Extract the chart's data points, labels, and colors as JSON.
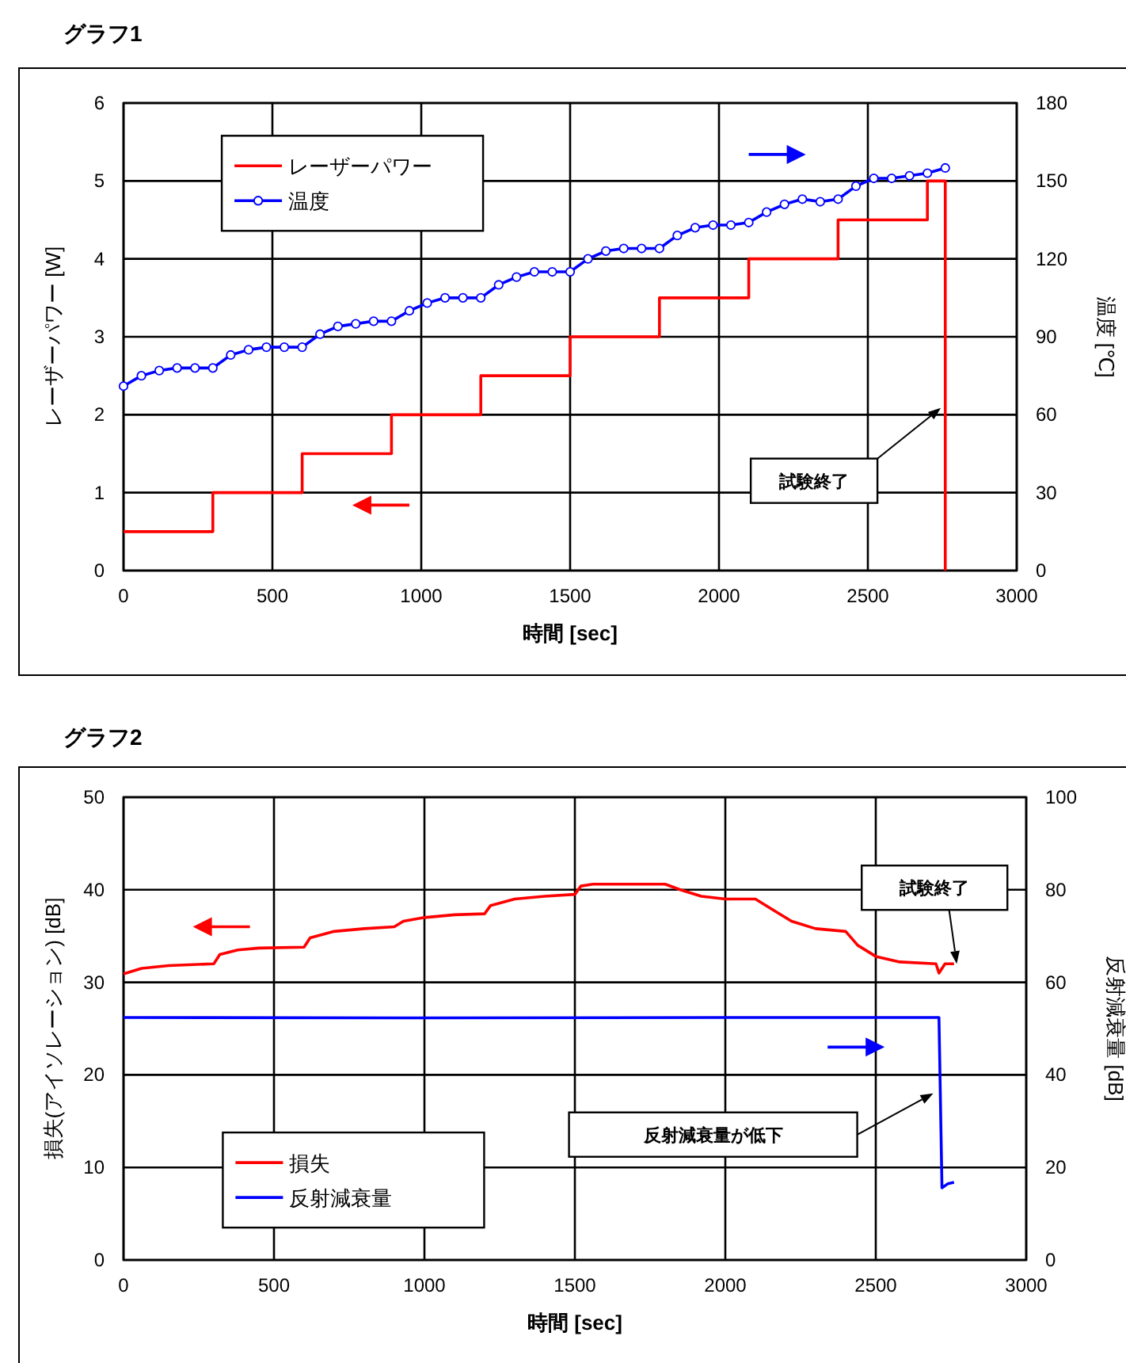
{
  "chart_data": [
    {
      "type": "line",
      "title": "グラフ1",
      "xlabel": "時間 [sec]",
      "ylabel": "レーザーパワー [W]",
      "y2label": "温度 [℃]",
      "xlim": [
        0,
        3000
      ],
      "xticks": [
        0,
        500,
        1000,
        1500,
        2000,
        2500,
        3000
      ],
      "ylim": [
        0,
        6
      ],
      "yticks": [
        0,
        1,
        2,
        3,
        4,
        5,
        6
      ],
      "y2lim": [
        0,
        180
      ],
      "y2ticks": [
        0,
        30,
        60,
        90,
        120,
        150,
        180
      ],
      "grid": true,
      "legend": "top left",
      "series": [
        {
          "name": "レーザーパワー",
          "type": "step",
          "color": "#ff0000",
          "marker": "none",
          "x": [
            0,
            300,
            600,
            900,
            1200,
            1500,
            1800,
            2100,
            2400,
            2700,
            2760
          ],
          "values": [
            0.5,
            1,
            1.5,
            2,
            2.5,
            3,
            3.5,
            4,
            4.5,
            5,
            0
          ]
        },
        {
          "name": "温度",
          "axis": "y2",
          "color": "#0000ff",
          "marker": "circle",
          "x": [
            0,
            60,
            120,
            180,
            240,
            300,
            360,
            420,
            480,
            540,
            600,
            660,
            720,
            780,
            840,
            900,
            960,
            1020,
            1080,
            1140,
            1200,
            1260,
            1320,
            1380,
            1440,
            1500,
            1560,
            1620,
            1680,
            1740,
            1800,
            1860,
            1920,
            1980,
            2040,
            2100,
            2160,
            2220,
            2280,
            2340,
            2400,
            2460,
            2520,
            2580,
            2640,
            2700,
            2760
          ],
          "values": [
            71,
            75,
            77,
            78,
            78,
            78,
            83,
            85,
            86,
            86,
            86,
            91,
            94,
            95,
            96,
            96,
            100,
            103,
            105,
            105,
            105,
            110,
            113,
            115,
            115,
            115,
            120,
            123,
            124,
            124,
            124,
            129,
            132,
            133,
            133,
            134,
            138,
            141,
            143,
            142,
            143,
            148,
            151,
            151,
            152,
            153,
            155
          ]
        }
      ],
      "annotations": [
        "試験終了"
      ]
    },
    {
      "type": "line",
      "title": "グラフ2",
      "xlabel": "時間 [sec]",
      "ylabel": "損失(アイソレーション) [dB]",
      "y2label": "反射減衰量 [dB]",
      "xlim": [
        0,
        3000
      ],
      "xticks": [
        0,
        500,
        1000,
        1500,
        2000,
        2500,
        3000
      ],
      "ylim": [
        0,
        50
      ],
      "yticks": [
        0,
        10,
        20,
        30,
        40,
        50
      ],
      "y2lim": [
        0,
        100
      ],
      "y2ticks": [
        0,
        20,
        40,
        60,
        80,
        100
      ],
      "grid": true,
      "legend": "bottom left",
      "series": [
        {
          "name": "損失",
          "color": "#ff0000",
          "x": [
            0,
            60,
            150,
            300,
            320,
            380,
            450,
            600,
            620,
            700,
            800,
            900,
            930,
            1000,
            1100,
            1200,
            1220,
            1300,
            1400,
            1500,
            1520,
            1560,
            1700,
            1800,
            1850,
            1920,
            2000,
            2100,
            2150,
            2220,
            2300,
            2400,
            2440,
            2500,
            2580,
            2700,
            2710,
            2730,
            2760
          ],
          "values": [
            30.9,
            31.5,
            31.8,
            32,
            33,
            33.5,
            33.7,
            33.8,
            34.8,
            35.5,
            35.8,
            36,
            36.6,
            37,
            37.3,
            37.4,
            38.3,
            39,
            39.3,
            39.5,
            40.4,
            40.6,
            40.6,
            40.6,
            40,
            39.3,
            39,
            39,
            38,
            36.6,
            35.8,
            35.5,
            34,
            32.8,
            32.2,
            32,
            31,
            32,
            32
          ]
        },
        {
          "name": "反射減衰量",
          "axis": "y2",
          "color": "#0000ff",
          "x": [
            0,
            1000,
            2000,
            2710,
            2720,
            2740,
            2760
          ],
          "values": [
            52.4,
            52.3,
            52.4,
            52.4,
            15.6,
            16.5,
            16.8
          ]
        }
      ],
      "annotations": [
        "試験終了",
        "反射減衰量が低下"
      ]
    }
  ]
}
